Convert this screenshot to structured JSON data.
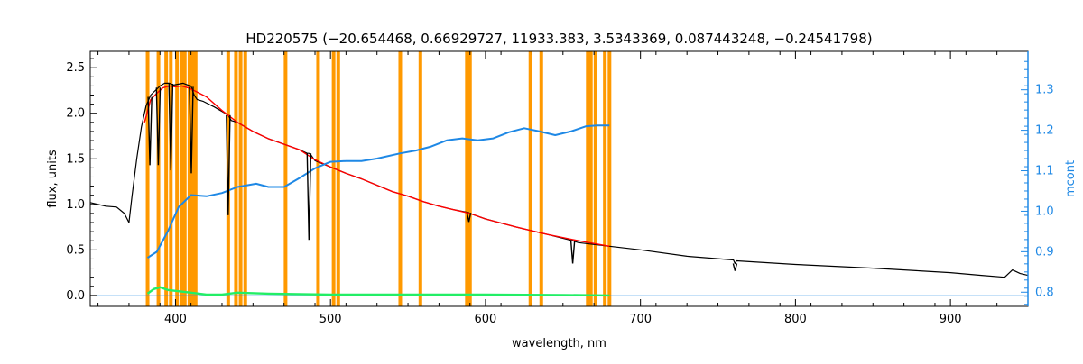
{
  "chart_data": {
    "type": "line",
    "title": "HD220575    (−20.654468, 0.66929727, 11933.383, 3.5343369, 0.087443248, −0.24541798)",
    "xlabel": "wavelength, nm",
    "ylabel": "flux, units",
    "y2label": "mcont",
    "xlim": [
      345,
      950
    ],
    "ylim": [
      -0.12,
      2.68
    ],
    "y2lim": [
      0.765,
      1.395
    ],
    "xticks": [
      400,
      500,
      600,
      700,
      800,
      900
    ],
    "yticks": [
      0.0,
      0.5,
      1.0,
      1.5,
      2.0,
      2.5
    ],
    "y2ticks": [
      0.8,
      0.9,
      1.0,
      1.1,
      1.2,
      1.3
    ],
    "grid": false,
    "colors": {
      "observed": "#000000",
      "model": "#ff0000",
      "residual": "#22ee66",
      "mcont": "#1e88e5",
      "masks": "#ff9900"
    },
    "mask_lines_nm": [
      382,
      389,
      394,
      397,
      401,
      404,
      406,
      409,
      411,
      413,
      434,
      439,
      442,
      445,
      471,
      492,
      502,
      505,
      545,
      558,
      588,
      590,
      629,
      636,
      666,
      668,
      671,
      677,
      680
    ],
    "series": [
      {
        "key": "mcont",
        "axis": "right",
        "x": [
          382,
          388,
          395,
          402,
          410,
          420,
          430,
          440,
          452,
          460,
          470,
          480,
          490,
          500,
          510,
          520,
          530,
          545,
          555,
          565,
          575,
          585,
          595,
          605,
          615,
          625,
          635,
          645,
          655,
          665,
          672,
          680
        ],
        "y": [
          0.885,
          0.9,
          0.95,
          1.01,
          1.04,
          1.037,
          1.045,
          1.06,
          1.068,
          1.06,
          1.06,
          1.082,
          1.106,
          1.122,
          1.124,
          1.124,
          1.13,
          1.143,
          1.15,
          1.16,
          1.175,
          1.18,
          1.175,
          1.18,
          1.195,
          1.205,
          1.197,
          1.188,
          1.197,
          1.21,
          1.212,
          1.212
        ]
      },
      {
        "key": "observed",
        "axis": "left",
        "x": [
          345,
          355,
          362,
          367,
          370,
          372,
          375,
          378,
          381,
          384,
          387,
          390,
          393,
          396,
          399,
          402,
          405,
          408,
          410,
          412,
          414,
          418,
          425,
          430,
          434,
          436,
          440,
          445,
          450,
          460,
          470,
          480,
          485,
          486.1,
          487.5,
          490,
          500,
          510,
          520,
          530,
          540,
          550,
          560,
          570,
          580,
          589,
          590,
          600,
          620,
          640,
          656.3,
          660,
          680,
          700,
          730,
          760,
          761,
          762,
          800,
          850,
          880,
          900,
          920,
          935,
          940,
          945,
          950
        ],
        "y": [
          1.02,
          0.98,
          0.97,
          0.9,
          0.8,
          1.1,
          1.5,
          1.85,
          2.08,
          2.2,
          2.25,
          2.3,
          2.33,
          2.33,
          2.31,
          2.32,
          2.33,
          2.31,
          2.3,
          2.2,
          2.15,
          2.13,
          2.07,
          2.02,
          1.98,
          1.92,
          1.9,
          1.85,
          1.8,
          1.72,
          1.66,
          1.6,
          1.56,
          1.56,
          1.54,
          1.48,
          1.41,
          1.34,
          1.28,
          1.21,
          1.14,
          1.09,
          1.03,
          0.98,
          0.94,
          0.91,
          0.9,
          0.84,
          0.75,
          0.67,
          0.6,
          0.58,
          0.54,
          0.5,
          0.43,
          0.39,
          0.35,
          0.38,
          0.34,
          0.3,
          0.27,
          0.25,
          0.22,
          0.2,
          0.28,
          0.24,
          0.22
        ]
      },
      {
        "key": "model",
        "axis": "left",
        "x": [
          380,
          384,
          388,
          392,
          396,
          400,
          404,
          408,
          412,
          420,
          430,
          440,
          450,
          460,
          470,
          480,
          490,
          500,
          510,
          520,
          530,
          540,
          550,
          560,
          570,
          580,
          590,
          600,
          620,
          640,
          660,
          680
        ],
        "y": [
          1.9,
          2.15,
          2.22,
          2.28,
          2.3,
          2.29,
          2.3,
          2.28,
          2.25,
          2.18,
          2.03,
          1.9,
          1.8,
          1.72,
          1.66,
          1.6,
          1.49,
          1.41,
          1.34,
          1.28,
          1.21,
          1.14,
          1.09,
          1.03,
          0.98,
          0.94,
          0.9,
          0.84,
          0.75,
          0.67,
          0.6,
          0.54
        ]
      },
      {
        "key": "residual",
        "axis": "left",
        "x": [
          382,
          386,
          390,
          395,
          400,
          410,
          420,
          430,
          440,
          460,
          500,
          550,
          600,
          650,
          680
        ],
        "y": [
          0.02,
          0.07,
          0.09,
          0.06,
          0.05,
          0.03,
          0.01,
          0.01,
          0.03,
          0.02,
          0.01,
          0.01,
          0.01,
          0.005,
          0.0
        ]
      },
      {
        "key": "right-baseline",
        "axis": "left",
        "x": [
          345,
          950
        ],
        "y": [
          -0.005,
          -0.005
        ]
      }
    ],
    "absorption_lines_nm": [
      383.5,
      388.9,
      397.0,
      410.2,
      434.0,
      486.1,
      589.3,
      656.3,
      761.0
    ]
  }
}
